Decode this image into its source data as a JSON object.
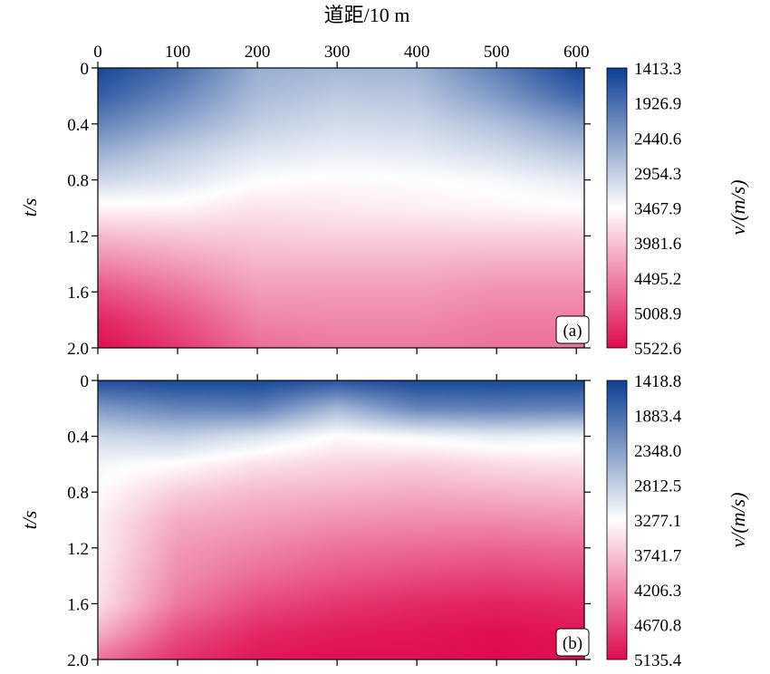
{
  "chart_data": [
    {
      "type": "heatmap",
      "panel_tag": "(a)",
      "xlabel": "道距/10 m",
      "ylabel": "t/s",
      "colorbar_label": "v/(m/s)",
      "xlim": [
        0,
        610
      ],
      "ylim": [
        0,
        2.0
      ],
      "x_ticks": [
        "0",
        "100",
        "200",
        "300",
        "400",
        "500",
        "600"
      ],
      "y_ticks": [
        "0",
        "0.4",
        "0.8",
        "1.2",
        "1.6",
        "2.0"
      ],
      "colorbar_ticks": [
        "1413.3",
        "1926.9",
        "2440.6",
        "2954.3",
        "3467.9",
        "3981.6",
        "4495.2",
        "5008.9",
        "5522.6"
      ],
      "colorbar_range": [
        1413.3,
        5522.6
      ],
      "x_grid": [
        0,
        100,
        200,
        300,
        400,
        500,
        600
      ],
      "t_grid": [
        0,
        0.2,
        0.4,
        0.6,
        0.8,
        1.0,
        1.2,
        1.4,
        1.6,
        1.8,
        2.0
      ],
      "values": [
        [
          1500,
          1900,
          2600,
          2700,
          2650,
          2100,
          1500
        ],
        [
          1750,
          2200,
          2750,
          2900,
          2850,
          2400,
          1850
        ],
        [
          2150,
          2550,
          2950,
          3100,
          3050,
          2800,
          2400
        ],
        [
          2600,
          2950,
          3200,
          3300,
          3250,
          3100,
          2850
        ],
        [
          3050,
          3200,
          3450,
          3500,
          3480,
          3400,
          3250
        ],
        [
          3550,
          3550,
          3700,
          3650,
          3600,
          3550,
          3500
        ],
        [
          4050,
          3950,
          3900,
          3850,
          3850,
          3850,
          3850
        ],
        [
          4500,
          4300,
          4100,
          4100,
          4100,
          4150,
          4150
        ],
        [
          4950,
          4650,
          4300,
          4300,
          4300,
          4400,
          4400
        ],
        [
          5300,
          4950,
          4500,
          4450,
          4450,
          4550,
          4550
        ],
        [
          5500,
          5150,
          4700,
          4600,
          4600,
          4650,
          4650
        ]
      ],
      "colors": {
        "low": "#0d3f94",
        "mid": "#ffffff",
        "high": "#df0b4f"
      }
    },
    {
      "type": "heatmap",
      "panel_tag": "(b)",
      "ylabel": "t/s",
      "colorbar_label": "v/(m/s)",
      "xlim": [
        0,
        610
      ],
      "ylim": [
        0,
        2.0
      ],
      "y_ticks": [
        "0",
        "0.4",
        "0.8",
        "1.2",
        "1.6",
        "2.0"
      ],
      "colorbar_ticks": [
        "1418.8",
        "1883.4",
        "2348.0",
        "2812.5",
        "3277.1",
        "3741.7",
        "4206.3",
        "4670.8",
        "5135.4"
      ],
      "colorbar_range": [
        1418.8,
        5135.4
      ],
      "x_grid": [
        0,
        100,
        200,
        300,
        400,
        500,
        600
      ],
      "t_grid": [
        0,
        0.2,
        0.4,
        0.6,
        0.8,
        1.0,
        1.2,
        1.4,
        1.6,
        1.8,
        2.0
      ],
      "values": [
        [
          1550,
          1500,
          1500,
          1600,
          1500,
          1500,
          1500
        ],
        [
          2300,
          2100,
          2050,
          2600,
          2100,
          2050,
          2100
        ],
        [
          2900,
          2800,
          3000,
          3300,
          3200,
          3100,
          3150
        ],
        [
          3200,
          3300,
          3500,
          3600,
          3650,
          3550,
          3500
        ],
        [
          3300,
          3650,
          3800,
          3850,
          3900,
          3850,
          3800
        ],
        [
          3400,
          3900,
          4000,
          4100,
          4150,
          4150,
          4100
        ],
        [
          3400,
          4050,
          4200,
          4350,
          4400,
          4450,
          4400
        ],
        [
          3450,
          4150,
          4400,
          4550,
          4650,
          4700,
          4650
        ],
        [
          3500,
          4300,
          4650,
          4800,
          4900,
          4950,
          4900
        ],
        [
          3850,
          4600,
          4900,
          5000,
          5050,
          5100,
          5050
        ],
        [
          4350,
          4850,
          5050,
          5100,
          5100,
          5130,
          5100
        ]
      ],
      "colors": {
        "low": "#0d3f94",
        "mid": "#ffffff",
        "high": "#df0b4f"
      }
    }
  ]
}
